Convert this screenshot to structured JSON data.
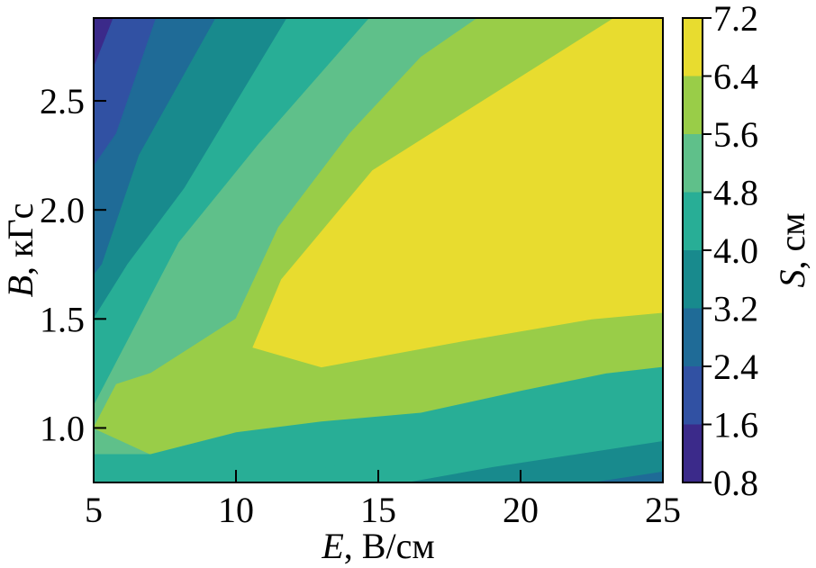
{
  "chart_data": {
    "type": "contour",
    "x": {
      "label_var": "E",
      "label_unit": ", В/см",
      "range": [
        5,
        25
      ],
      "ticks": [
        5,
        10,
        15,
        20,
        25
      ],
      "tick_labels": [
        "5",
        "10",
        "15",
        "20",
        "25"
      ]
    },
    "y": {
      "label_var": "B",
      "label_unit": ", кГс",
      "range": [
        0.75,
        2.88
      ],
      "ticks": [
        1.0,
        1.5,
        2.0,
        2.5
      ],
      "tick_labels": [
        "1.0",
        "1.5",
        "2.0",
        "2.5"
      ]
    },
    "colorbar": {
      "label_var": "S",
      "label_unit": ", см",
      "levels": [
        0.8,
        1.6,
        2.4,
        3.2,
        4.0,
        4.8,
        5.6,
        6.4,
        7.2
      ],
      "tick_labels": [
        "0.8",
        "1.6",
        "2.4",
        "3.2",
        "4.0",
        "4.8",
        "5.6",
        "6.4",
        "7.2"
      ],
      "colors": [
        "#3b2a8a",
        "#3151a3",
        "#1f6b97",
        "#188a8d",
        "#28ae96",
        "#5fc08a",
        "#99cd48",
        "#e8dc2f"
      ]
    },
    "regions": [
      {
        "band": 0,
        "points": [
          [
            5,
            2.88
          ],
          [
            5.7,
            2.88
          ],
          [
            5,
            2.65
          ]
        ]
      },
      {
        "band": 1,
        "points": [
          [
            5,
            2.65
          ],
          [
            5.7,
            2.88
          ],
          [
            7.2,
            2.88
          ],
          [
            5.8,
            2.35
          ],
          [
            5,
            2.2
          ]
        ]
      },
      {
        "band": 2,
        "points": [
          [
            5,
            2.2
          ],
          [
            5.8,
            2.35
          ],
          [
            7.2,
            2.88
          ],
          [
            9.3,
            2.88
          ],
          [
            6.6,
            2.25
          ],
          [
            5.3,
            1.75
          ],
          [
            5,
            1.7
          ]
        ]
      },
      {
        "band": 3,
        "points": [
          [
            5,
            1.7
          ],
          [
            5.3,
            1.75
          ],
          [
            6.6,
            2.25
          ],
          [
            9.3,
            2.88
          ],
          [
            11.8,
            2.88
          ],
          [
            8.2,
            2.1
          ],
          [
            6.2,
            1.75
          ],
          [
            5,
            1.5
          ]
        ]
      },
      {
        "band": 4,
        "points": [
          [
            5,
            1.5
          ],
          [
            6.2,
            1.75
          ],
          [
            8.2,
            2.1
          ],
          [
            11.8,
            2.88
          ],
          [
            14.7,
            2.88
          ],
          [
            10.8,
            2.3
          ],
          [
            8.0,
            1.85
          ],
          [
            5,
            1.1
          ]
        ]
      },
      {
        "band": 5,
        "points": [
          [
            5,
            1.1
          ],
          [
            8.0,
            1.85
          ],
          [
            10.8,
            2.3
          ],
          [
            14.7,
            2.88
          ],
          [
            18.5,
            2.88
          ],
          [
            16.5,
            2.7
          ],
          [
            14.0,
            2.35
          ],
          [
            11.5,
            1.92
          ],
          [
            10.0,
            1.5
          ],
          [
            7.0,
            1.25
          ],
          [
            5.8,
            1.2
          ],
          [
            5,
            1.0
          ]
        ]
      },
      {
        "band": 6,
        "points": [
          [
            5,
            1.0
          ],
          [
            5.8,
            1.2
          ],
          [
            7.0,
            1.25
          ],
          [
            10.0,
            1.5
          ],
          [
            11.5,
            1.92
          ],
          [
            14.0,
            2.35
          ],
          [
            16.5,
            2.7
          ],
          [
            18.5,
            2.88
          ],
          [
            23.3,
            2.88
          ],
          [
            14.8,
            2.18
          ],
          [
            11.6,
            1.68
          ],
          [
            10.6,
            1.37
          ],
          [
            13.0,
            1.28
          ],
          [
            18.0,
            1.4
          ],
          [
            22.5,
            1.5
          ],
          [
            25,
            1.53
          ],
          [
            25,
            1.28
          ],
          [
            23.0,
            1.25
          ],
          [
            20.0,
            1.17
          ],
          [
            16.5,
            1.07
          ],
          [
            13.0,
            1.03
          ],
          [
            10.0,
            0.98
          ],
          [
            7.0,
            0.88
          ]
        ]
      },
      {
        "band": 7,
        "points": [
          [
            23.3,
            2.88
          ],
          [
            25,
            2.88
          ],
          [
            25,
            1.53
          ],
          [
            22.5,
            1.5
          ],
          [
            18.0,
            1.4
          ],
          [
            13.0,
            1.28
          ],
          [
            10.6,
            1.37
          ],
          [
            11.6,
            1.68
          ],
          [
            14.8,
            2.18
          ]
        ]
      }
    ]
  }
}
